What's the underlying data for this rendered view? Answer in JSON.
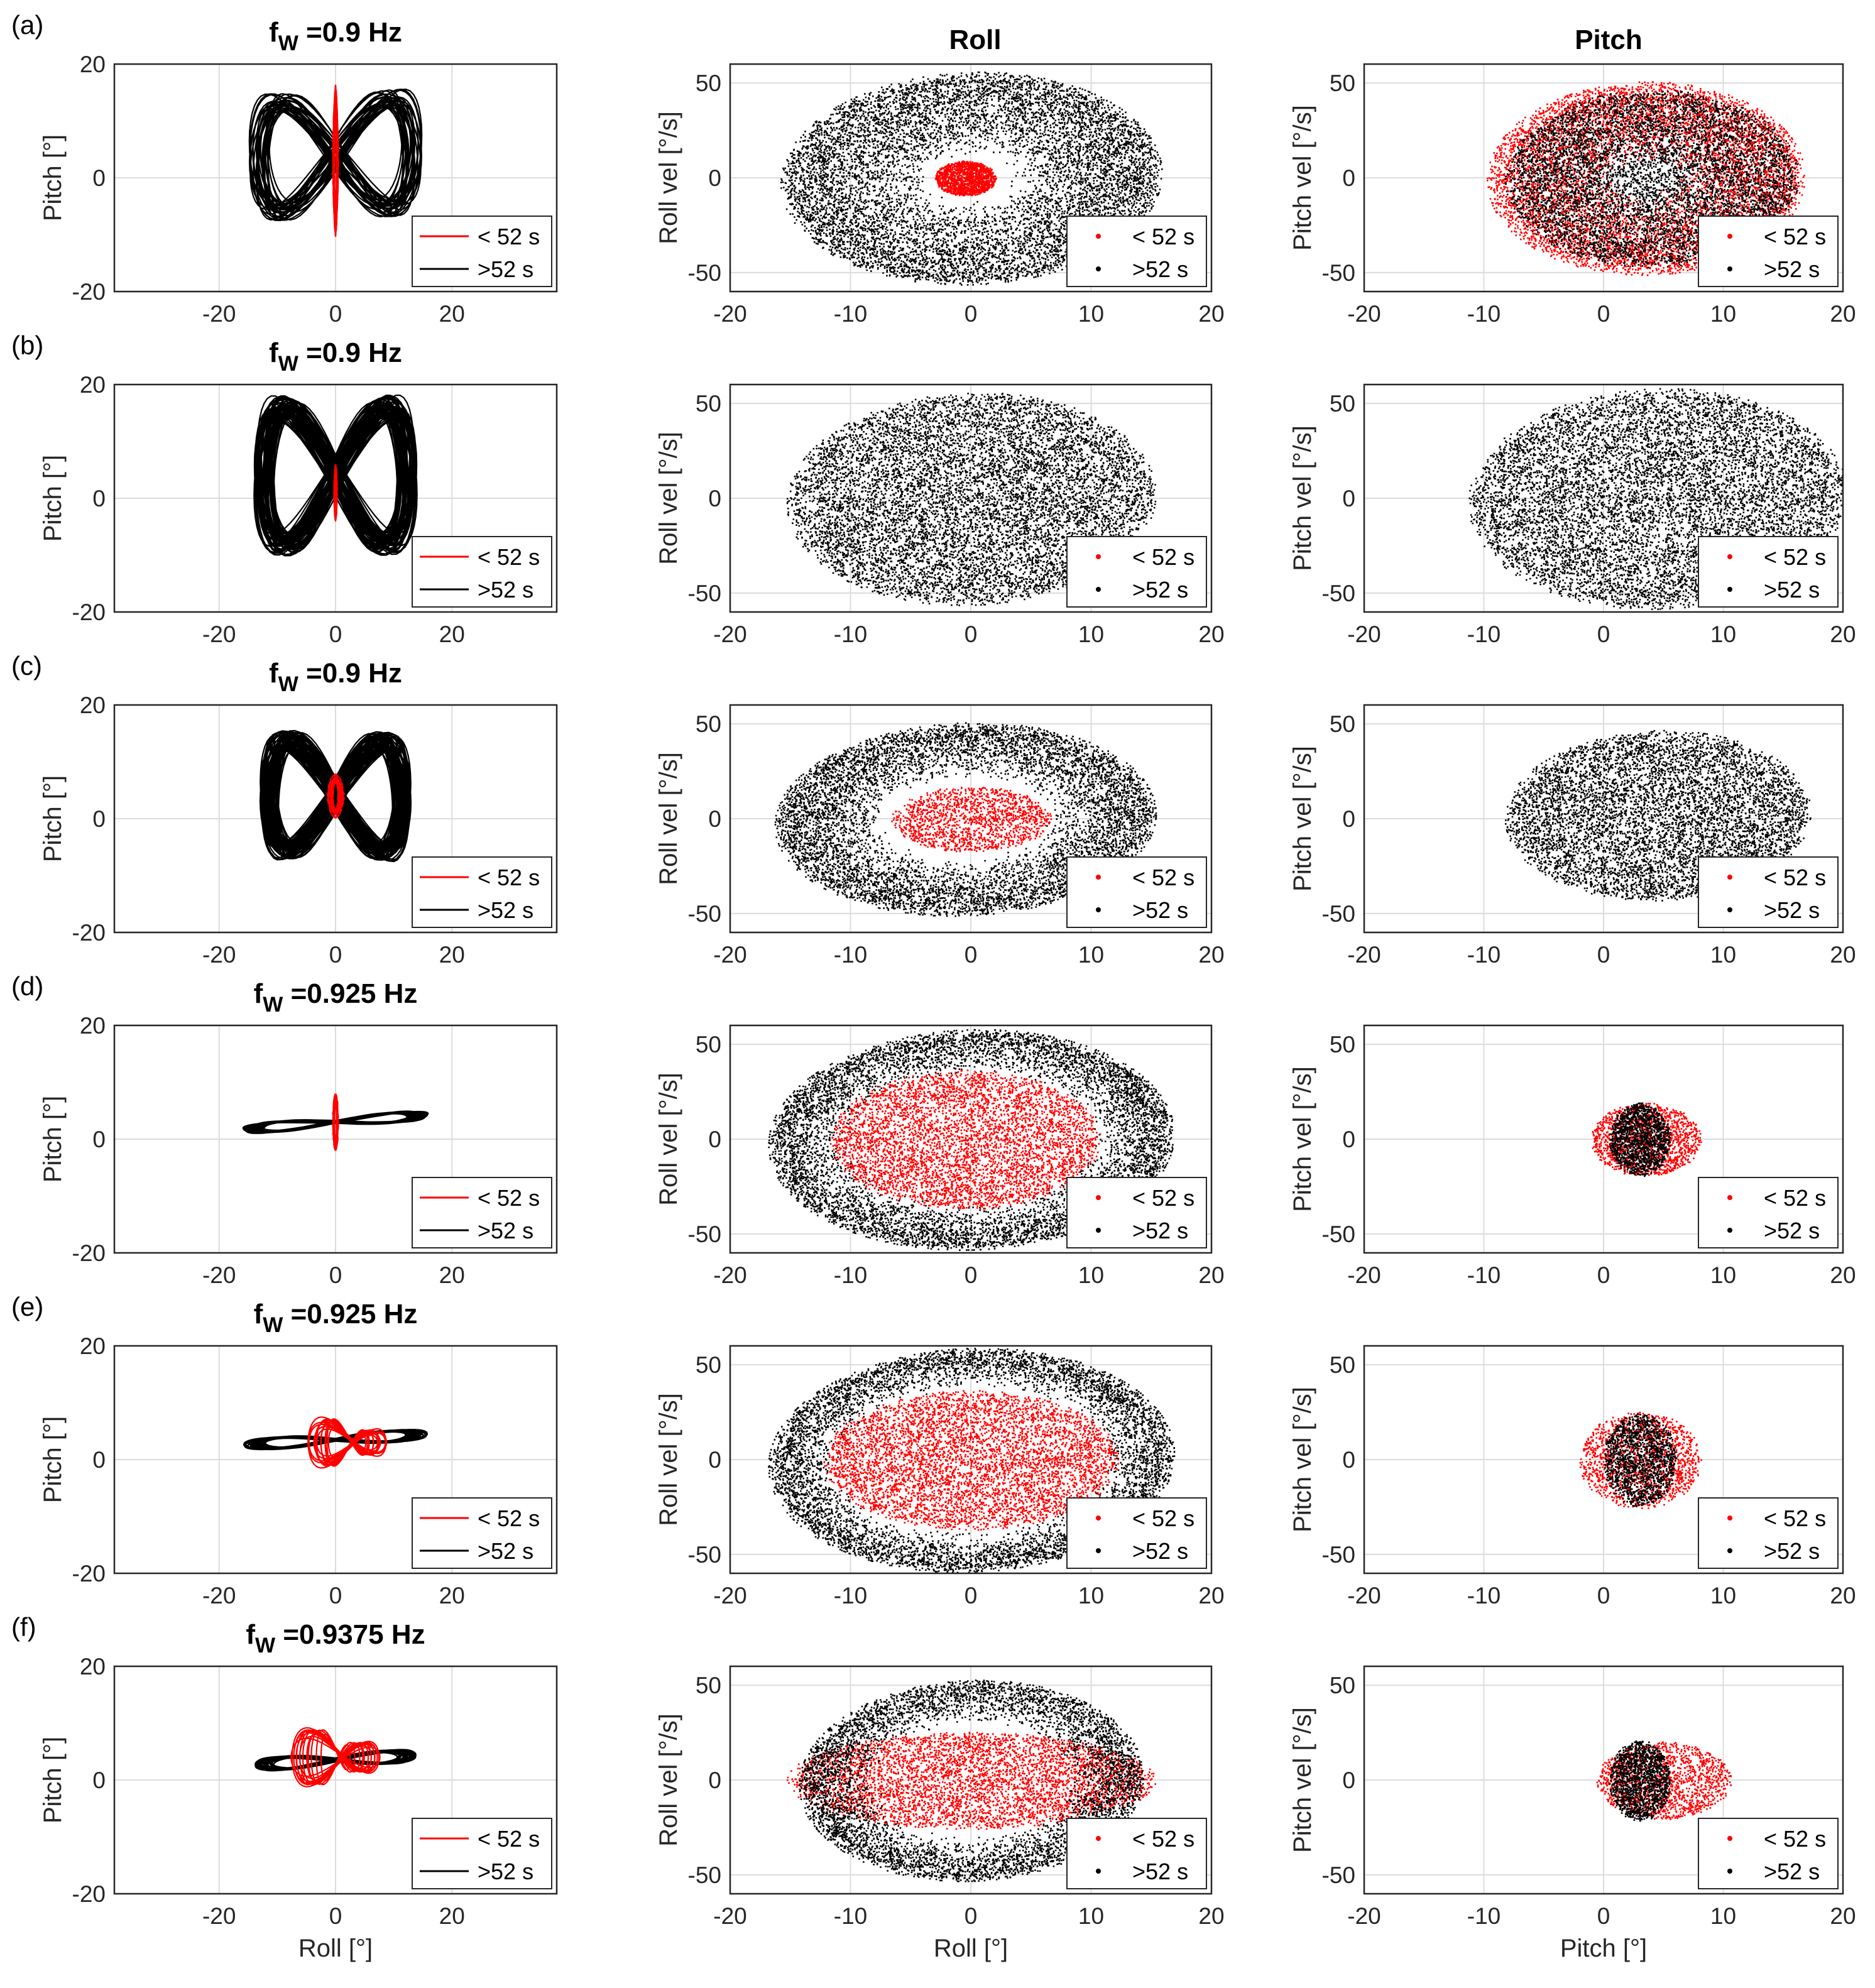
{
  "figure": {
    "column_titles": [
      "Roll",
      "Pitch"
    ],
    "legend": {
      "red_label": "< 52 s",
      "black_label": ">52 s"
    },
    "colors": {
      "red": "#ff0000",
      "black": "#000000",
      "grid": "#dcdcdc",
      "axis": "#262626"
    }
  },
  "chart_data": [
    {
      "panel": "(a)",
      "title_prefix": "f",
      "title_sub": "W",
      "title_suffix": " =0.9 Hz",
      "plots": [
        {
          "type": "line",
          "xlabel": "",
          "ylabel": "Pitch [°]",
          "xlim": [
            -38,
            38
          ],
          "ylim": [
            -20,
            20
          ],
          "xticks": [
            -20,
            0,
            20
          ],
          "yticks": [
            -20,
            0,
            20
          ],
          "shape": {
            "kind": "bowtie",
            "cx": 0,
            "cy": 4,
            "ax": 15,
            "ay": 12,
            "tilt": 0.12,
            "strands": 32
          },
          "red": {
            "kind": "spike",
            "cx": 0,
            "cy": 3,
            "ax": 1,
            "ay": 14
          }
        },
        {
          "type": "scatter",
          "xlabel": "",
          "ylabel": "Roll vel  [°/s]",
          "xlim": [
            -20,
            20
          ],
          "ylim": [
            -60,
            60
          ],
          "xticks": [
            -20,
            -10,
            0,
            10,
            20
          ],
          "yticks": [
            -50,
            0,
            50
          ],
          "black": {
            "cx": 0,
            "cy": 0,
            "rx": 15.5,
            "ry": 55,
            "inner": 0.25,
            "tilt": 0.12
          },
          "red": {
            "cx": -0.5,
            "cy": 0,
            "rx": 2.5,
            "ry": 9,
            "inner": 0,
            "tilt": 0
          }
        },
        {
          "type": "scatter",
          "xlabel": "",
          "ylabel": "Pitch vel  [°/s]",
          "xlim": [
            -20,
            20
          ],
          "ylim": [
            -60,
            60
          ],
          "xticks": [
            -20,
            -10,
            0,
            10,
            20
          ],
          "yticks": [
            -50,
            0,
            50
          ],
          "red": {
            "cx": 3.5,
            "cy": 0,
            "rx": 13,
            "ry": 50,
            "inner": 0.2,
            "tilt": 0.05
          },
          "black": {
            "cx": 4,
            "cy": 0,
            "rx": 12,
            "ry": 46,
            "inner": 0,
            "tilt": 0.05
          }
        }
      ]
    },
    {
      "panel": "(b)",
      "title_prefix": "f",
      "title_sub": "W",
      "title_suffix": " =0.9 Hz",
      "plots": [
        {
          "type": "line",
          "xlabel": "",
          "ylabel": "Pitch [°]",
          "xlim": [
            -38,
            38
          ],
          "ylim": [
            -20,
            20
          ],
          "xticks": [
            -20,
            0,
            20
          ],
          "yticks": [
            -20,
            0,
            20
          ],
          "shape": {
            "kind": "bowtie",
            "cx": 0,
            "cy": 4,
            "ax": 14,
            "ay": 15,
            "tilt": 0.02,
            "strands": 60
          },
          "red": {
            "kind": "spike",
            "cx": 0,
            "cy": 1,
            "ax": 0.6,
            "ay": 5
          }
        },
        {
          "type": "scatter",
          "xlabel": "",
          "ylabel": "Roll vel  [°/s]",
          "xlim": [
            -20,
            20
          ],
          "ylim": [
            -60,
            60
          ],
          "xticks": [
            -20,
            -10,
            0,
            10,
            20
          ],
          "yticks": [
            -50,
            0,
            50
          ],
          "black": {
            "cx": 0,
            "cy": 0,
            "rx": 15,
            "ry": 55,
            "inner": 0,
            "tilt": 0.12
          },
          "red": null
        },
        {
          "type": "scatter",
          "xlabel": "",
          "ylabel": "Pitch vel  [°/s]",
          "xlim": [
            -20,
            20
          ],
          "ylim": [
            -60,
            60
          ],
          "xticks": [
            -20,
            -10,
            0,
            10,
            20
          ],
          "yticks": [
            -50,
            0,
            50
          ],
          "black": {
            "cx": 4.5,
            "cy": 0,
            "rx": 15.5,
            "ry": 57,
            "inner": 0,
            "tilt": 0.1
          },
          "red": null
        }
      ]
    },
    {
      "panel": "(c)",
      "title_prefix": "f",
      "title_sub": "W",
      "title_suffix": " =0.9 Hz",
      "plots": [
        {
          "type": "line",
          "xlabel": "",
          "ylabel": "Pitch [°]",
          "xlim": [
            -38,
            38
          ],
          "ylim": [
            -20,
            20
          ],
          "xticks": [
            -20,
            0,
            20
          ],
          "yticks": [
            -20,
            0,
            20
          ],
          "shape": {
            "kind": "bowtie",
            "cx": 0,
            "cy": 4,
            "ax": 13,
            "ay": 12,
            "tilt": -0.05,
            "strands": 60
          },
          "red": {
            "kind": "spike",
            "cx": 0,
            "cy": 4,
            "ax": 3,
            "ay": 4
          }
        },
        {
          "type": "scatter",
          "xlabel": "",
          "ylabel": "Roll vel  [°/s]",
          "xlim": [
            -20,
            20
          ],
          "ylim": [
            -60,
            60
          ],
          "xticks": [
            -20,
            -10,
            0,
            10,
            20
          ],
          "yticks": [
            -50,
            0,
            50
          ],
          "black": {
            "cx": -0.5,
            "cy": 0,
            "rx": 15.5,
            "ry": 50,
            "inner": 0.45,
            "tilt": 0.15
          },
          "red": {
            "cx": 0,
            "cy": 0,
            "rx": 6.5,
            "ry": 17,
            "inner": 0,
            "tilt": 0
          }
        },
        {
          "type": "scatter",
          "xlabel": "",
          "ylabel": "Pitch vel  [°/s]",
          "xlim": [
            -20,
            20
          ],
          "ylim": [
            -60,
            60
          ],
          "xticks": [
            -20,
            -10,
            0,
            10,
            20
          ],
          "yticks": [
            -50,
            0,
            50
          ],
          "black": {
            "cx": 4.5,
            "cy": 2,
            "rx": 12.5,
            "ry": 44,
            "inner": 0,
            "tilt": 0.1
          },
          "red": null
        }
      ]
    },
    {
      "panel": "(d)",
      "title_prefix": "f",
      "title_sub": "W",
      "title_suffix": " =0.925 Hz",
      "plots": [
        {
          "type": "line",
          "xlabel": "",
          "ylabel": "Pitch [°]",
          "xlim": [
            -38,
            38
          ],
          "ylim": [
            -20,
            20
          ],
          "xticks": [
            -20,
            0,
            20
          ],
          "yticks": [
            -20,
            0,
            20
          ],
          "shape": {
            "kind": "band",
            "cx": 0,
            "cy": 3,
            "ax": 16,
            "ay": 2,
            "tilt": 0.08,
            "strands": 40
          },
          "red": {
            "kind": "spike",
            "cx": 0,
            "cy": 3,
            "ax": 1,
            "ay": 5
          }
        },
        {
          "type": "scatter",
          "xlabel": "",
          "ylabel": "Roll vel  [°/s]",
          "xlim": [
            -20,
            20
          ],
          "ylim": [
            -60,
            60
          ],
          "xticks": [
            -20,
            -10,
            0,
            10,
            20
          ],
          "yticks": [
            -50,
            0,
            50
          ],
          "black": {
            "cx": 0,
            "cy": 0,
            "rx": 16.5,
            "ry": 57,
            "inner": 0.62,
            "tilt": 0.12
          },
          "red": {
            "cx": -0.5,
            "cy": 0,
            "rx": 11,
            "ry": 36,
            "inner": 0,
            "tilt": 0.02
          }
        },
        {
          "type": "scatter",
          "xlabel": "",
          "ylabel": "Pitch vel  [°/s]",
          "xlim": [
            -20,
            20
          ],
          "ylim": [
            -60,
            60
          ],
          "xticks": [
            -20,
            -10,
            0,
            10,
            20
          ],
          "yticks": [
            -50,
            0,
            50
          ],
          "red": {
            "cx": 3.5,
            "cy": 0,
            "rx": 4.5,
            "ry": 19,
            "inner": 0,
            "tilt": 0
          },
          "black": {
            "cx": 3,
            "cy": 0,
            "rx": 2.5,
            "ry": 19,
            "inner": 0,
            "tilt": 0
          }
        }
      ]
    },
    {
      "panel": "(e)",
      "title_prefix": "f",
      "title_sub": "W",
      "title_suffix": " =0.925 Hz",
      "plots": [
        {
          "type": "line",
          "xlabel": "",
          "ylabel": "Pitch [°]",
          "xlim": [
            -38,
            38
          ],
          "ylim": [
            -20,
            20
          ],
          "xticks": [
            -20,
            0,
            20
          ],
          "yticks": [
            -20,
            0,
            20
          ],
          "shape": {
            "kind": "band",
            "cx": 0,
            "cy": 3.5,
            "ax": 16,
            "ay": 2.2,
            "tilt": 0.06,
            "strands": 40
          },
          "red": {
            "kind": "bowred",
            "cx": 2,
            "cy": 3,
            "ax": 7,
            "ay": 5
          }
        },
        {
          "type": "scatter",
          "xlabel": "",
          "ylabel": "Roll vel  [°/s]",
          "xlim": [
            -20,
            20
          ],
          "ylim": [
            -60,
            60
          ],
          "xticks": [
            -20,
            -10,
            0,
            10,
            20
          ],
          "yticks": [
            -50,
            0,
            50
          ],
          "black": {
            "cx": 0,
            "cy": 0,
            "rx": 16.5,
            "ry": 58,
            "inner": 0.68,
            "tilt": 0.14
          },
          "red": {
            "cx": 0,
            "cy": 0,
            "rx": 12,
            "ry": 36,
            "inner": 0,
            "tilt": 0.02
          }
        },
        {
          "type": "scatter",
          "xlabel": "",
          "ylabel": "Pitch vel  [°/s]",
          "xlim": [
            -20,
            20
          ],
          "ylim": [
            -60,
            60
          ],
          "xticks": [
            -20,
            -10,
            0,
            10,
            20
          ],
          "yticks": [
            -50,
            0,
            50
          ],
          "red": {
            "cx": 3,
            "cy": 0,
            "rx": 5,
            "ry": 25,
            "inner": 0,
            "tilt": 0
          },
          "black": {
            "cx": 3,
            "cy": 0,
            "rx": 3,
            "ry": 24,
            "inner": 0,
            "tilt": 0
          }
        }
      ]
    },
    {
      "panel": "(f)",
      "title_prefix": "f",
      "title_sub": "W",
      "title_suffix": " =0.9375 Hz",
      "plots": [
        {
          "type": "line",
          "xlabel": "Roll [°]",
          "ylabel": "Pitch [°]",
          "xlim": [
            -38,
            38
          ],
          "ylim": [
            -20,
            20
          ],
          "xticks": [
            -20,
            0,
            20
          ],
          "yticks": [
            -20,
            0,
            20
          ],
          "shape": {
            "kind": "band",
            "cx": 0,
            "cy": 3.5,
            "ax": 14,
            "ay": 2.5,
            "tilt": 0.06,
            "strands": 40
          },
          "red": {
            "kind": "bowred",
            "cx": 0,
            "cy": 4,
            "ax": 8,
            "ay": 6
          }
        },
        {
          "type": "scatter",
          "xlabel": "Roll [°]",
          "ylabel": "Roll vel  [°/s]",
          "xlim": [
            -20,
            20
          ],
          "ylim": [
            -60,
            60
          ],
          "xticks": [
            -20,
            -10,
            0,
            10,
            20
          ],
          "yticks": [
            -50,
            0,
            50
          ],
          "black": {
            "cx": 0,
            "cy": 0,
            "rx": 14,
            "ry": 52,
            "inner": 0.6,
            "tilt": 0.12
          },
          "red": {
            "cx": 0,
            "cy": 0,
            "rx": 15,
            "ry": 25,
            "inner": 0,
            "tilt": 0
          }
        },
        {
          "type": "scatter",
          "xlabel": "Pitch [°]",
          "ylabel": "Pitch vel  [°/s]",
          "xlim": [
            -20,
            20
          ],
          "ylim": [
            -60,
            60
          ],
          "xticks": [
            -20,
            -10,
            0,
            10,
            20
          ],
          "yticks": [
            -50,
            0,
            50
          ],
          "red": {
            "cx": 5,
            "cy": 0,
            "rx": 5.5,
            "ry": 20,
            "inner": 0,
            "tilt": 0
          },
          "black": {
            "cx": 3,
            "cy": 0,
            "rx": 2.5,
            "ry": 21,
            "inner": 0,
            "tilt": 0
          }
        }
      ]
    }
  ]
}
